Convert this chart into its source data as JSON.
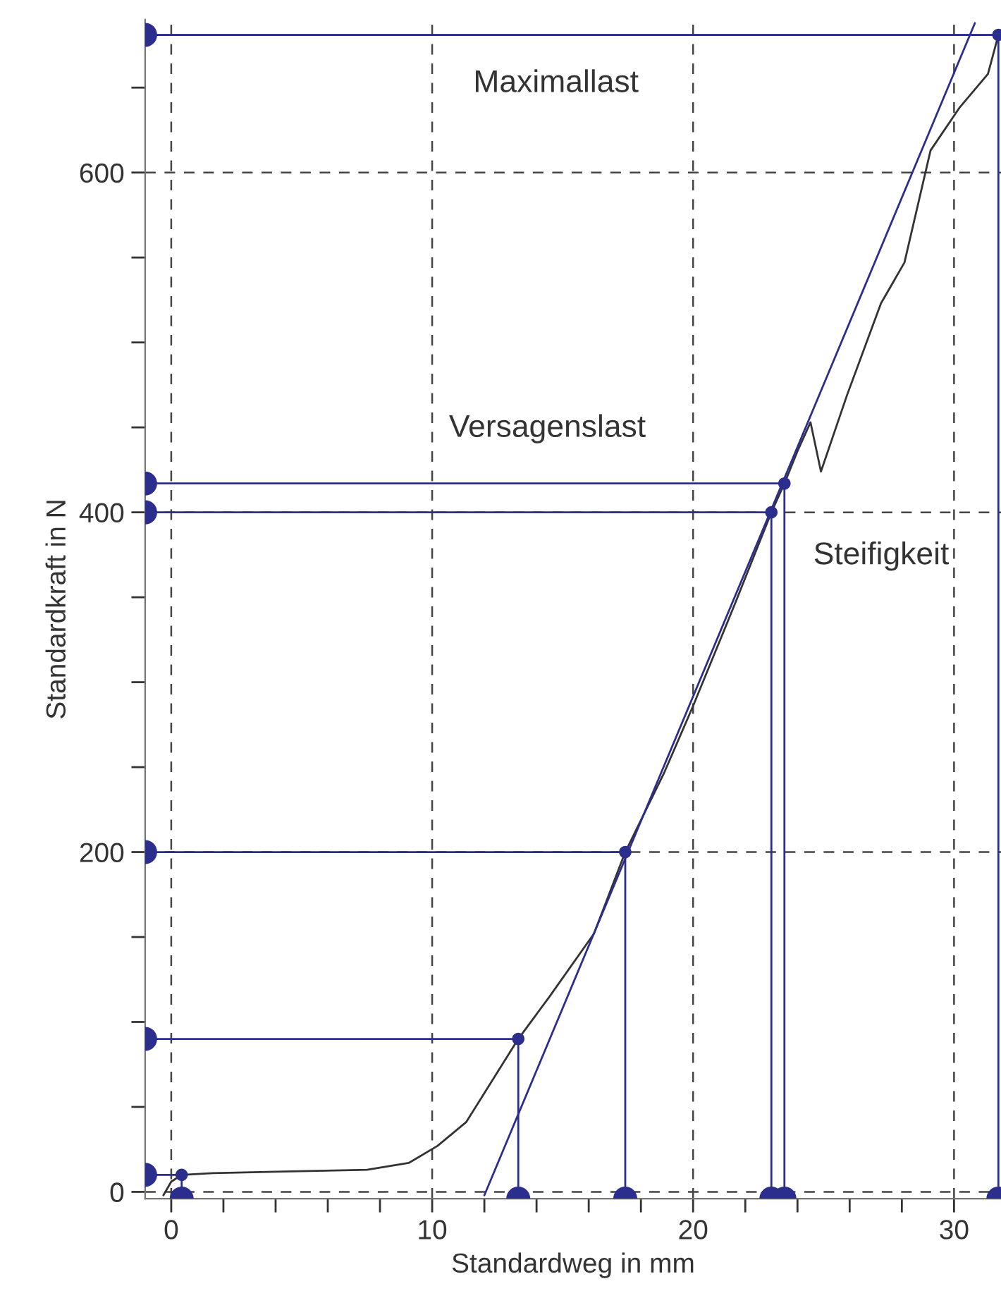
{
  "chart_data": {
    "type": "line",
    "xlabel": "Standardweg in mm",
    "ylabel": "Standardkraft in N",
    "xlim": [
      -1,
      31.8
    ],
    "ylim": [
      -4,
      690
    ],
    "xticks": [
      0,
      {
        "value": 2,
        "label": null
      },
      {
        "value": 4,
        "label": null
      },
      {
        "value": 6,
        "label": null
      },
      {
        "value": 8,
        "label": null
      },
      10,
      {
        "value": 12,
        "label": null
      },
      {
        "value": 14,
        "label": null
      },
      {
        "value": 16,
        "label": null
      },
      {
        "value": 18,
        "label": null
      },
      20,
      {
        "value": 22,
        "label": null
      },
      {
        "value": 24,
        "label": null
      },
      {
        "value": 26,
        "label": null
      },
      {
        "value": 28,
        "label": null
      },
      30
    ],
    "yticks": [
      0,
      {
        "value": 50,
        "label": null
      },
      {
        "value": 100,
        "label": null
      },
      {
        "value": 150,
        "label": null
      },
      200,
      {
        "value": 250,
        "label": null
      },
      {
        "value": 300,
        "label": null
      },
      {
        "value": 350,
        "label": null
      },
      400,
      {
        "value": 450,
        "label": null
      },
      {
        "value": 500,
        "label": null
      },
      {
        "value": 550,
        "label": null
      },
      600,
      {
        "value": 650,
        "label": null
      }
    ],
    "grid": true,
    "line_style": "solid",
    "series": [
      {
        "color": "#333333",
        "marker": "none",
        "x": [
          -0.3,
          0,
          0.4,
          1.6,
          4.3,
          7.5,
          9.1,
          10.2,
          11.3,
          13.3,
          14.5,
          16.2,
          17.4,
          18.9,
          20,
          21.6,
          23,
          23.5,
          24,
          24.5,
          24.9,
          25.9,
          27.2,
          28.1,
          29.1,
          30.2,
          31.3,
          31.7
        ],
        "values": [
          -2,
          6,
          10,
          11,
          12,
          13,
          17,
          27,
          41,
          90,
          115,
          152,
          200,
          247,
          286,
          346,
          400,
          417,
          436,
          453,
          424,
          469,
          523,
          547,
          613,
          638,
          658,
          681
        ]
      },
      {
        "color": "#2b2e8c",
        "marker": "none",
        "x": [
          12.0,
          30.8
        ],
        "values": [
          -2,
          688
        ]
      },
      {
        "type": "scatter",
        "color": "#2b2e8c",
        "marker": "circle",
        "x": [
          0.4,
          13.3,
          17.4,
          23,
          23.5,
          31.7
        ],
        "values": [
          10,
          90,
          200,
          400,
          417,
          681
        ]
      }
    ],
    "ref_lines": [
      {
        "axis": "y",
        "value": 681,
        "label": "Maximallast",
        "color": "#2b2e8c"
      }
    ],
    "annotations": [
      "Versagenslast",
      "Steifigkeit"
    ]
  }
}
